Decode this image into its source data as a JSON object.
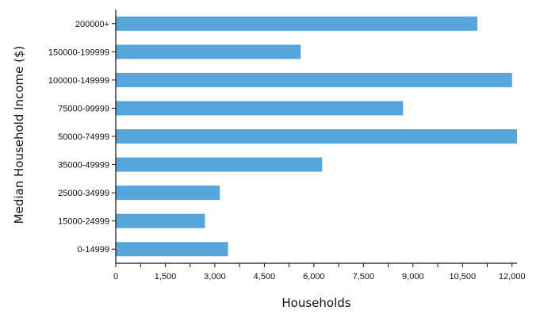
{
  "chart_data": {
    "type": "bar",
    "orientation": "horizontal",
    "title": "",
    "xlabel": "Households",
    "ylabel": "Median Household Income ($)",
    "categories": [
      "0-14999",
      "15000-24999",
      "25000-34999",
      "35000-49999",
      "50000-74999",
      "75000-99999",
      "100000-149999",
      "150000-199999",
      "200000+"
    ],
    "values": [
      3400,
      2700,
      3150,
      6250,
      12150,
      8700,
      12000,
      5600,
      10950
    ],
    "xlim": [
      0,
      12150
    ],
    "xticks": [
      0,
      750,
      1500,
      2250,
      3000,
      3750,
      4500,
      5250,
      6000,
      6750,
      7500,
      8250,
      9000,
      9750,
      10500,
      11250,
      12000
    ],
    "xtick_labels": [
      "0",
      "",
      "1,500",
      "",
      "3,000",
      "",
      "4,500",
      "",
      "6,000",
      "",
      "7,500",
      "",
      "9,000",
      "",
      "10,500",
      "",
      "12,000"
    ],
    "grid": false,
    "legend": "none",
    "bar_color": "#57a6db"
  }
}
